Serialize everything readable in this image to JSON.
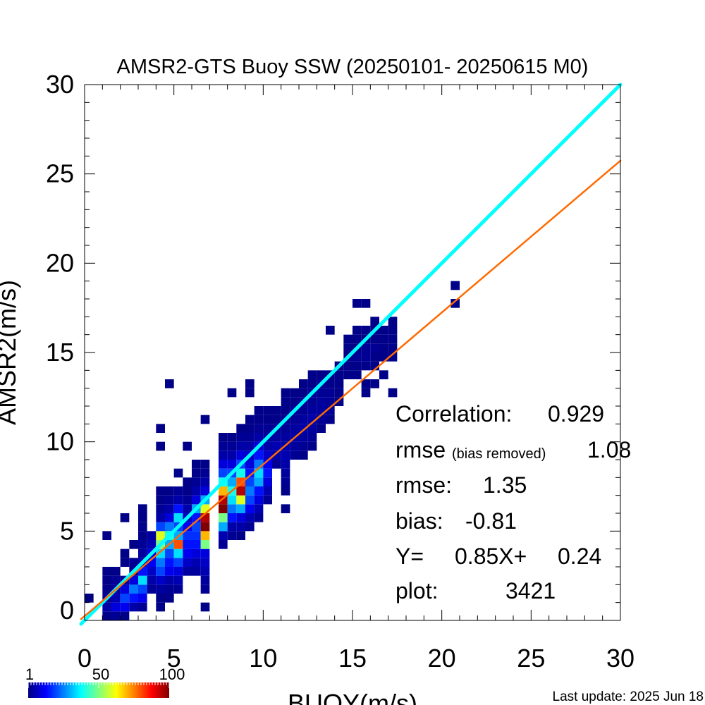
{
  "chart_data": {
    "type": "heatmap",
    "title": "AMSR2-GTS Buoy SSW (20250101- 20250615 M0)",
    "xlabel": "BUOY(m/s)",
    "ylabel": "AMSR2(m/s)",
    "xlim": [
      0,
      30
    ],
    "ylim": [
      0,
      30
    ],
    "xticks": [
      "0",
      "5",
      "10",
      "15",
      "20",
      "25",
      "30"
    ],
    "yticks": [
      "0",
      "5",
      "10",
      "15",
      "20",
      "25",
      "30"
    ],
    "bin_size": 0.5,
    "stats": {
      "correlation_label": "Correlation:",
      "correlation": "0.929",
      "rmse_br_label": "rmse",
      "rmse_br_sub": "(bias removed)",
      "rmse_br": "1.08",
      "rmse_label": "rmse:",
      "rmse": "1.35",
      "bias_label": "bias:",
      "bias": "-0.81",
      "fit_label": "Y=",
      "fit": "0.85X+",
      "fit_intercept": "0.24",
      "count_label": "plot:",
      "count": "3421"
    },
    "lines": [
      {
        "kind": "one-to-one",
        "slope": 1.0,
        "intercept": 0.0,
        "color": "#00ffff"
      },
      {
        "kind": "regression",
        "slope": 0.85,
        "intercept": 0.24,
        "color": "#ff6a00"
      }
    ],
    "colorbar": {
      "min": 1,
      "max": 100,
      "labels": [
        "1",
        "50",
        "100"
      ]
    },
    "footer": "Last update: 2025 Jun 18",
    "bins": [
      [
        0.25,
        1.25,
        1
      ],
      [
        1.25,
        0.25,
        2
      ],
      [
        1.25,
        0.75,
        5
      ],
      [
        1.25,
        1.25,
        3
      ],
      [
        1.25,
        1.75,
        2
      ],
      [
        1.25,
        2.25,
        2
      ],
      [
        1.25,
        2.75,
        2
      ],
      [
        1.25,
        4.75,
        2
      ],
      [
        1.75,
        0.25,
        3
      ],
      [
        1.75,
        0.75,
        10
      ],
      [
        1.75,
        1.25,
        6
      ],
      [
        1.75,
        1.75,
        4
      ],
      [
        1.75,
        2.25,
        3
      ],
      [
        1.75,
        2.75,
        2
      ],
      [
        2.25,
        0.25,
        2
      ],
      [
        2.25,
        0.75,
        12
      ],
      [
        2.25,
        1.25,
        20
      ],
      [
        2.25,
        1.75,
        10
      ],
      [
        2.25,
        2.25,
        3
      ],
      [
        2.25,
        3.25,
        2
      ],
      [
        2.25,
        3.75,
        2
      ],
      [
        2.25,
        5.75,
        2
      ],
      [
        2.75,
        0.75,
        5
      ],
      [
        2.75,
        1.25,
        15
      ],
      [
        2.75,
        1.75,
        25
      ],
      [
        2.75,
        2.25,
        10
      ],
      [
        2.75,
        2.75,
        3
      ],
      [
        2.75,
        3.25,
        3
      ],
      [
        2.75,
        4.25,
        2
      ],
      [
        3.25,
        0.75,
        3
      ],
      [
        3.25,
        1.25,
        12
      ],
      [
        3.25,
        1.75,
        20
      ],
      [
        3.25,
        2.25,
        35
      ],
      [
        3.25,
        2.75,
        15
      ],
      [
        3.25,
        3.25,
        5
      ],
      [
        3.25,
        3.75,
        4
      ],
      [
        3.25,
        4.25,
        3
      ],
      [
        3.25,
        4.75,
        2
      ],
      [
        3.25,
        5.25,
        2
      ],
      [
        3.25,
        5.75,
        2
      ],
      [
        3.25,
        6.25,
        2
      ],
      [
        3.75,
        1.75,
        3
      ],
      [
        3.75,
        2.25,
        5
      ],
      [
        3.75,
        2.75,
        8
      ],
      [
        3.75,
        3.25,
        12
      ],
      [
        3.75,
        3.75,
        10
      ],
      [
        3.75,
        4.25,
        6
      ],
      [
        3.75,
        4.75,
        4
      ],
      [
        4.25,
        0.75,
        2
      ],
      [
        4.25,
        1.25,
        2
      ],
      [
        4.25,
        1.75,
        4
      ],
      [
        4.25,
        2.25,
        8
      ],
      [
        4.25,
        2.75,
        20
      ],
      [
        4.25,
        3.25,
        25
      ],
      [
        4.25,
        3.75,
        35
      ],
      [
        4.25,
        4.25,
        50
      ],
      [
        4.25,
        4.75,
        60
      ],
      [
        4.25,
        5.25,
        20
      ],
      [
        4.25,
        5.75,
        5
      ],
      [
        4.25,
        6.25,
        3
      ],
      [
        4.25,
        6.75,
        2
      ],
      [
        4.25,
        7.25,
        2
      ],
      [
        4.25,
        9.75,
        2
      ],
      [
        4.25,
        10.75,
        2
      ],
      [
        4.75,
        1.25,
        2
      ],
      [
        4.75,
        1.75,
        3
      ],
      [
        4.75,
        2.25,
        5
      ],
      [
        4.75,
        2.75,
        12
      ],
      [
        4.75,
        3.25,
        15
      ],
      [
        4.75,
        3.75,
        20
      ],
      [
        4.75,
        4.25,
        30
      ],
      [
        4.75,
        4.75,
        40
      ],
      [
        4.75,
        5.25,
        25
      ],
      [
        4.75,
        5.75,
        10
      ],
      [
        4.75,
        6.25,
        5
      ],
      [
        4.75,
        6.75,
        3
      ],
      [
        4.75,
        7.25,
        2
      ],
      [
        4.75,
        13.25,
        2
      ],
      [
        5.25,
        1.75,
        3
      ],
      [
        5.25,
        2.25,
        6
      ],
      [
        5.25,
        2.75,
        10
      ],
      [
        5.25,
        3.25,
        20
      ],
      [
        5.25,
        3.75,
        35
      ],
      [
        5.25,
        4.25,
        80
      ],
      [
        5.25,
        4.75,
        30
      ],
      [
        5.25,
        5.25,
        20
      ],
      [
        5.25,
        5.75,
        35
      ],
      [
        5.25,
        6.25,
        15
      ],
      [
        5.25,
        6.75,
        5
      ],
      [
        5.25,
        7.25,
        3
      ],
      [
        5.25,
        8.25,
        2
      ],
      [
        5.75,
        2.75,
        4
      ],
      [
        5.75,
        3.25,
        8
      ],
      [
        5.75,
        3.75,
        12
      ],
      [
        5.75,
        4.25,
        15
      ],
      [
        5.75,
        4.75,
        18
      ],
      [
        5.75,
        5.25,
        12
      ],
      [
        5.75,
        5.75,
        8
      ],
      [
        5.75,
        6.25,
        5
      ],
      [
        5.75,
        6.75,
        3
      ],
      [
        5.75,
        7.25,
        2
      ],
      [
        5.75,
        7.75,
        2
      ],
      [
        5.75,
        9.75,
        2
      ],
      [
        6.25,
        2.75,
        4
      ],
      [
        6.25,
        3.25,
        6
      ],
      [
        6.25,
        3.75,
        10
      ],
      [
        6.25,
        4.25,
        15
      ],
      [
        6.25,
        4.75,
        18
      ],
      [
        6.25,
        5.25,
        20
      ],
      [
        6.25,
        5.75,
        15
      ],
      [
        6.25,
        6.25,
        30
      ],
      [
        6.25,
        6.75,
        10
      ],
      [
        6.25,
        7.25,
        5
      ],
      [
        6.25,
        7.75,
        3
      ],
      [
        6.25,
        8.25,
        2
      ],
      [
        6.25,
        8.75,
        2
      ],
      [
        6.75,
        0.75,
        2
      ],
      [
        6.75,
        1.75,
        3
      ],
      [
        6.75,
        2.25,
        4
      ],
      [
        6.75,
        2.75,
        6
      ],
      [
        6.75,
        3.25,
        8
      ],
      [
        6.75,
        3.75,
        10
      ],
      [
        6.75,
        4.25,
        50
      ],
      [
        6.75,
        4.75,
        70
      ],
      [
        6.75,
        5.25,
        100
      ],
      [
        6.75,
        5.75,
        95
      ],
      [
        6.75,
        6.25,
        60
      ],
      [
        6.75,
        6.75,
        30
      ],
      [
        6.75,
        7.25,
        10
      ],
      [
        6.75,
        7.75,
        5
      ],
      [
        6.75,
        8.25,
        3
      ],
      [
        6.75,
        8.75,
        2
      ],
      [
        6.75,
        11.25,
        2
      ],
      [
        7.75,
        4.25,
        3
      ],
      [
        7.75,
        4.75,
        6
      ],
      [
        7.75,
        5.25,
        30
      ],
      [
        7.75,
        5.75,
        50
      ],
      [
        7.75,
        6.25,
        100
      ],
      [
        7.75,
        6.75,
        95
      ],
      [
        7.75,
        7.25,
        70
      ],
      [
        7.75,
        7.75,
        40
      ],
      [
        7.75,
        8.25,
        20
      ],
      [
        7.75,
        8.75,
        10
      ],
      [
        7.75,
        9.25,
        5
      ],
      [
        7.75,
        9.75,
        3
      ],
      [
        7.75,
        10.25,
        2
      ],
      [
        8.25,
        4.75,
        3
      ],
      [
        8.25,
        5.25,
        5
      ],
      [
        8.25,
        5.75,
        15
      ],
      [
        8.25,
        6.25,
        25
      ],
      [
        8.25,
        6.75,
        35
      ],
      [
        8.25,
        7.25,
        40
      ],
      [
        8.25,
        7.75,
        30
      ],
      [
        8.25,
        8.25,
        20
      ],
      [
        8.25,
        8.75,
        10
      ],
      [
        8.25,
        9.25,
        5
      ],
      [
        8.25,
        9.75,
        3
      ],
      [
        8.25,
        10.25,
        2
      ],
      [
        8.25,
        12.75,
        2
      ],
      [
        8.75,
        4.75,
        2
      ],
      [
        8.75,
        5.25,
        5
      ],
      [
        8.75,
        5.75,
        10
      ],
      [
        8.75,
        6.25,
        30
      ],
      [
        8.75,
        6.75,
        60
      ],
      [
        8.75,
        7.25,
        95
      ],
      [
        8.75,
        7.75,
        80
      ],
      [
        8.75,
        8.25,
        40
      ],
      [
        8.75,
        8.75,
        20
      ],
      [
        8.75,
        9.25,
        10
      ],
      [
        8.75,
        9.75,
        5
      ],
      [
        8.75,
        10.25,
        3
      ],
      [
        8.75,
        10.75,
        2
      ],
      [
        9.25,
        5.25,
        3
      ],
      [
        9.25,
        5.75,
        6
      ],
      [
        9.25,
        6.25,
        12
      ],
      [
        9.25,
        6.75,
        20
      ],
      [
        9.25,
        7.25,
        25
      ],
      [
        9.25,
        7.75,
        20
      ],
      [
        9.25,
        8.25,
        15
      ],
      [
        9.25,
        8.75,
        10
      ],
      [
        9.25,
        9.25,
        8
      ],
      [
        9.25,
        9.75,
        5
      ],
      [
        9.25,
        10.25,
        3
      ],
      [
        9.25,
        10.75,
        2
      ],
      [
        9.25,
        11.25,
        2
      ],
      [
        9.25,
        12.75,
        2
      ],
      [
        9.25,
        13.25,
        2
      ],
      [
        9.75,
        5.75,
        3
      ],
      [
        9.75,
        6.25,
        6
      ],
      [
        9.75,
        6.75,
        10
      ],
      [
        9.75,
        7.25,
        15
      ],
      [
        9.75,
        7.75,
        30
      ],
      [
        9.75,
        8.25,
        35
      ],
      [
        9.75,
        8.75,
        25
      ],
      [
        9.75,
        9.25,
        15
      ],
      [
        9.75,
        9.75,
        10
      ],
      [
        9.75,
        10.25,
        5
      ],
      [
        9.75,
        10.75,
        3
      ],
      [
        9.75,
        11.25,
        2
      ],
      [
        9.75,
        11.75,
        2
      ],
      [
        10.25,
        6.75,
        3
      ],
      [
        10.25,
        7.25,
        6
      ],
      [
        10.25,
        7.75,
        10
      ],
      [
        10.25,
        8.25,
        15
      ],
      [
        10.25,
        8.75,
        12
      ],
      [
        10.25,
        9.25,
        8
      ],
      [
        10.25,
        9.75,
        5
      ],
      [
        10.25,
        10.25,
        4
      ],
      [
        10.25,
        10.75,
        3
      ],
      [
        10.25,
        11.25,
        2
      ],
      [
        10.25,
        11.75,
        2
      ],
      [
        10.75,
        8.75,
        3
      ],
      [
        10.75,
        9.25,
        5
      ],
      [
        10.75,
        9.75,
        6
      ],
      [
        10.75,
        10.25,
        4
      ],
      [
        10.75,
        10.75,
        3
      ],
      [
        10.75,
        11.25,
        2
      ],
      [
        10.75,
        11.75,
        2
      ],
      [
        11.25,
        6.25,
        2
      ],
      [
        11.25,
        7.25,
        2
      ],
      [
        11.25,
        7.75,
        3
      ],
      [
        11.25,
        8.25,
        4
      ],
      [
        11.25,
        8.75,
        5
      ],
      [
        11.25,
        9.25,
        6
      ],
      [
        11.25,
        9.75,
        5
      ],
      [
        11.25,
        10.25,
        4
      ],
      [
        11.25,
        10.75,
        3
      ],
      [
        11.25,
        11.25,
        3
      ],
      [
        11.25,
        11.75,
        2
      ],
      [
        11.25,
        12.25,
        2
      ],
      [
        11.25,
        12.75,
        2
      ],
      [
        11.75,
        9.25,
        3
      ],
      [
        11.75,
        9.75,
        4
      ],
      [
        11.75,
        10.25,
        5
      ],
      [
        11.75,
        10.75,
        4
      ],
      [
        11.75,
        11.25,
        3
      ],
      [
        11.75,
        11.75,
        3
      ],
      [
        11.75,
        12.25,
        2
      ],
      [
        11.75,
        12.75,
        2
      ],
      [
        12.25,
        9.25,
        2
      ],
      [
        12.25,
        9.75,
        3
      ],
      [
        12.25,
        10.25,
        4
      ],
      [
        12.25,
        10.75,
        5
      ],
      [
        12.25,
        11.25,
        4
      ],
      [
        12.25,
        11.75,
        3
      ],
      [
        12.25,
        12.25,
        3
      ],
      [
        12.25,
        12.75,
        2
      ],
      [
        12.25,
        13.25,
        2
      ],
      [
        12.75,
        9.75,
        2
      ],
      [
        12.75,
        10.25,
        3
      ],
      [
        12.75,
        10.75,
        4
      ],
      [
        12.75,
        11.25,
        5
      ],
      [
        12.75,
        11.75,
        4
      ],
      [
        12.75,
        12.25,
        3
      ],
      [
        12.75,
        12.75,
        3
      ],
      [
        12.75,
        13.25,
        2
      ],
      [
        12.75,
        13.75,
        2
      ],
      [
        13.25,
        10.75,
        2
      ],
      [
        13.25,
        11.25,
        3
      ],
      [
        13.25,
        11.75,
        4
      ],
      [
        13.25,
        12.25,
        4
      ],
      [
        13.25,
        12.75,
        3
      ],
      [
        13.25,
        13.25,
        3
      ],
      [
        13.25,
        13.75,
        2
      ],
      [
        13.75,
        11.25,
        2
      ],
      [
        13.75,
        11.75,
        3
      ],
      [
        13.75,
        12.25,
        3
      ],
      [
        13.75,
        12.75,
        3
      ],
      [
        13.75,
        13.25,
        2
      ],
      [
        13.75,
        13.75,
        2
      ],
      [
        13.75,
        16.25,
        2
      ],
      [
        14.25,
        12.25,
        2
      ],
      [
        14.25,
        12.75,
        2
      ],
      [
        14.25,
        13.25,
        2
      ],
      [
        14.25,
        13.75,
        2
      ],
      [
        14.25,
        14.25,
        2
      ],
      [
        14.75,
        13.75,
        2
      ],
      [
        14.75,
        14.25,
        2
      ],
      [
        14.75,
        14.75,
        2
      ],
      [
        14.75,
        15.25,
        2
      ],
      [
        14.75,
        15.75,
        2
      ],
      [
        15.25,
        13.75,
        2
      ],
      [
        15.25,
        14.25,
        2
      ],
      [
        15.25,
        14.75,
        3
      ],
      [
        15.25,
        15.25,
        2
      ],
      [
        15.25,
        15.75,
        2
      ],
      [
        15.25,
        16.25,
        2
      ],
      [
        15.25,
        17.75,
        2
      ],
      [
        15.75,
        12.75,
        2
      ],
      [
        15.75,
        13.25,
        2
      ],
      [
        15.75,
        14.25,
        2
      ],
      [
        15.75,
        14.75,
        3
      ],
      [
        15.75,
        15.25,
        3
      ],
      [
        15.75,
        15.75,
        2
      ],
      [
        15.75,
        16.25,
        2
      ],
      [
        15.75,
        17.75,
        2
      ],
      [
        16.25,
        13.25,
        2
      ],
      [
        16.25,
        14.25,
        2
      ],
      [
        16.25,
        14.75,
        2
      ],
      [
        16.25,
        15.25,
        3
      ],
      [
        16.25,
        15.75,
        2
      ],
      [
        16.25,
        16.25,
        2
      ],
      [
        16.25,
        16.75,
        2
      ],
      [
        16.75,
        13.75,
        2
      ],
      [
        16.75,
        14.75,
        2
      ],
      [
        16.75,
        15.25,
        2
      ],
      [
        16.75,
        15.75,
        2
      ],
      [
        16.75,
        16.25,
        2
      ],
      [
        17.25,
        12.75,
        2
      ],
      [
        17.25,
        14.75,
        2
      ],
      [
        17.25,
        15.25,
        2
      ],
      [
        17.25,
        15.75,
        2
      ],
      [
        17.25,
        16.25,
        2
      ],
      [
        17.25,
        16.75,
        2
      ],
      [
        20.75,
        17.75,
        2
      ],
      [
        20.75,
        18.75,
        2
      ]
    ]
  }
}
